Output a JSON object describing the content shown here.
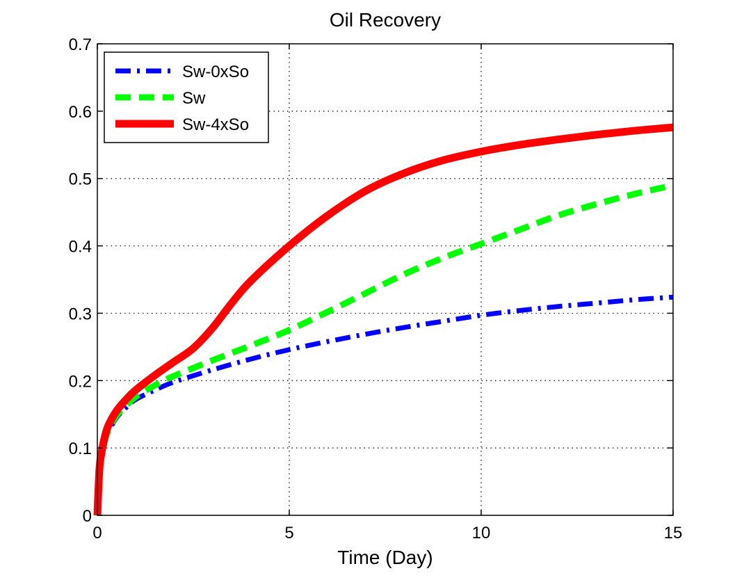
{
  "chart_data": {
    "type": "line",
    "title": "Oil Recovery",
    "xlabel": "Time (Day)",
    "ylabel": "",
    "xlim": [
      0,
      15
    ],
    "ylim": [
      0,
      0.7
    ],
    "x_ticks": [
      0,
      5,
      10,
      15
    ],
    "x_tick_labels": [
      "0",
      "5",
      "10",
      "15"
    ],
    "y_ticks": [
      0,
      0.1,
      0.2,
      0.3,
      0.4,
      0.5,
      0.6,
      0.7
    ],
    "y_tick_labels": [
      "0",
      "0.1",
      "0.2",
      "0.3",
      "0.4",
      "0.5",
      "0.6",
      "0.7"
    ],
    "grid": true,
    "legend_position": "top-left",
    "series": [
      {
        "name": "Sw-0xSo",
        "color": "#0000ff",
        "style": "dash-dot",
        "x": [
          0,
          0.05,
          0.1,
          0.2,
          0.3,
          0.5,
          0.75,
          1,
          1.5,
          2,
          3,
          4,
          5,
          6,
          7,
          8,
          9,
          10,
          11,
          12,
          13,
          14,
          15
        ],
        "y": [
          0,
          0.06,
          0.085,
          0.11,
          0.125,
          0.145,
          0.16,
          0.172,
          0.186,
          0.198,
          0.216,
          0.232,
          0.246,
          0.258,
          0.269,
          0.279,
          0.288,
          0.297,
          0.304,
          0.31,
          0.315,
          0.32,
          0.324
        ]
      },
      {
        "name": "Sw",
        "color": "#00ff00",
        "style": "dashed",
        "x": [
          0,
          0.05,
          0.1,
          0.2,
          0.3,
          0.5,
          0.75,
          1,
          1.5,
          2,
          3,
          4,
          5,
          6,
          7,
          8,
          9,
          10,
          11,
          12,
          13,
          14,
          15
        ],
        "y": [
          0,
          0.06,
          0.085,
          0.112,
          0.128,
          0.148,
          0.163,
          0.176,
          0.193,
          0.207,
          0.23,
          0.252,
          0.275,
          0.302,
          0.33,
          0.358,
          0.382,
          0.403,
          0.424,
          0.445,
          0.462,
          0.477,
          0.49
        ]
      },
      {
        "name": "Sw-4xSo",
        "color": "#ff0000",
        "style": "solid",
        "x": [
          0,
          0.05,
          0.1,
          0.2,
          0.3,
          0.5,
          0.75,
          1,
          1.5,
          2,
          2.5,
          3,
          3.5,
          4,
          5,
          6,
          7,
          8,
          9,
          10,
          11,
          12,
          13,
          14,
          15
        ],
        "y": [
          0,
          0.065,
          0.09,
          0.118,
          0.135,
          0.155,
          0.172,
          0.186,
          0.208,
          0.228,
          0.248,
          0.278,
          0.315,
          0.348,
          0.4,
          0.445,
          0.482,
          0.508,
          0.527,
          0.54,
          0.55,
          0.558,
          0.565,
          0.571,
          0.576
        ]
      }
    ]
  }
}
